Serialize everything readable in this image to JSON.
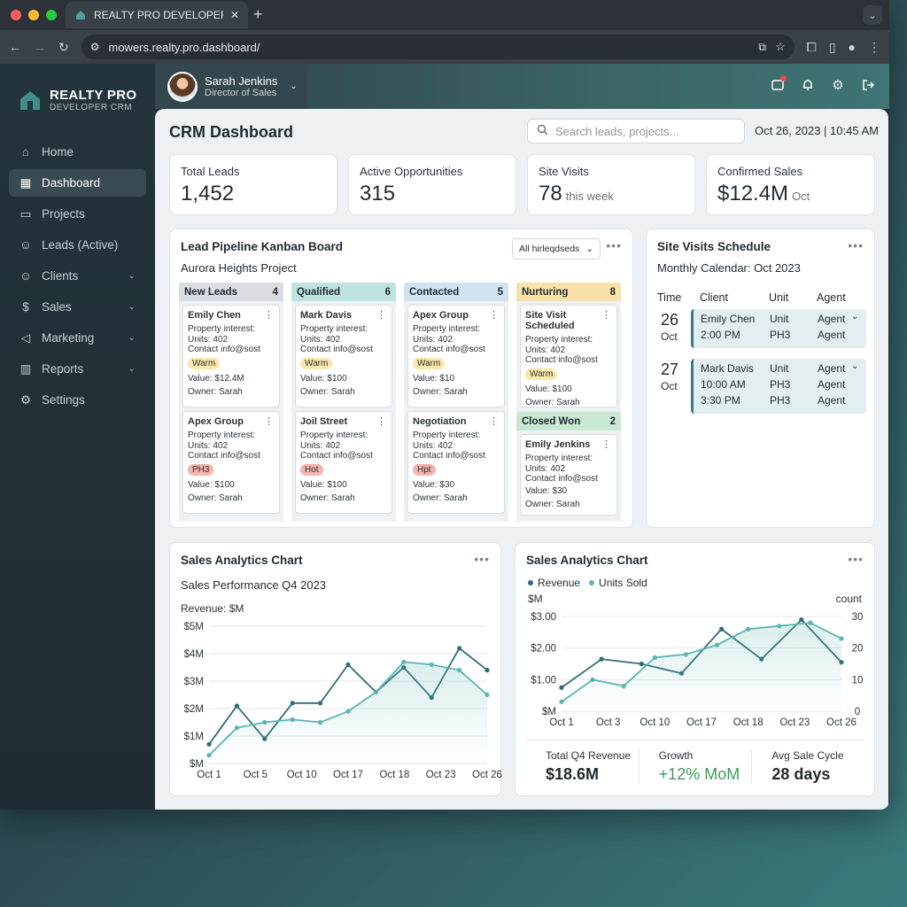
{
  "browser": {
    "tab_title": "REALTY PRO DEVELOPER CRM",
    "url": "mowers.realty.pro.dashboard/"
  },
  "brand": {
    "title": "REALTY PRO",
    "subtitle": "DEVELOPER CRM"
  },
  "user": {
    "name": "Sarah Jenkins",
    "role": "Director of Sales"
  },
  "sidebar": {
    "items": [
      {
        "label": "Home",
        "icon": "home-icon"
      },
      {
        "label": "Dashboard",
        "icon": "grid-icon",
        "active": true
      },
      {
        "label": "Projects",
        "icon": "folder-icon"
      },
      {
        "label": "Leads (Active)",
        "icon": "users-icon"
      },
      {
        "label": "Clients",
        "icon": "users-icon",
        "expandable": true
      },
      {
        "label": "Sales",
        "icon": "dollar-icon",
        "expandable": true
      },
      {
        "label": "Marketing",
        "icon": "megaphone-icon",
        "expandable": true
      },
      {
        "label": "Reports",
        "icon": "bar-chart-icon",
        "expandable": true
      },
      {
        "label": "Settings",
        "icon": "gear-icon"
      }
    ]
  },
  "header": {
    "title": "CRM Dashboard",
    "search_placeholder": "Search leads, projects...",
    "datetime": "Oct 26, 2023 | 10:45 AM"
  },
  "kpis": [
    {
      "label": "Total Leads",
      "value": "1,452",
      "suffix": ""
    },
    {
      "label": "Active Opportunities",
      "value": "315",
      "suffix": ""
    },
    {
      "label": "Site Visits",
      "value": "78",
      "suffix": "this week"
    },
    {
      "label": "Confirmed Sales",
      "value": "$12.4M",
      "suffix": "Oct"
    }
  ],
  "kanban": {
    "title": "Lead Pipeline Kanban Board",
    "subtitle": "Aurora Heights Project",
    "filter": "All hirleqdseds",
    "columns": [
      {
        "name": "New Leads",
        "count": "4",
        "color": "#d9dde1",
        "cards": [
          {
            "name": "Emily Chen",
            "l1": "Property interest:",
            "l2": "Units: 402",
            "l3": "Contact info@sost",
            "tag": "Warm",
            "tagclass": "warm",
            "value": "Value: $12.4M",
            "owner": "Owner: Sarah"
          },
          {
            "name": "Apex Group",
            "l1": "Property interest:",
            "l2": "Units: 402",
            "l3": "Contact info@sost",
            "tag": "PH3",
            "tagclass": "ph3",
            "value": "Value: $100",
            "owner": "Owner: Sarah"
          }
        ]
      },
      {
        "name": "Qualified",
        "count": "6",
        "color": "#bfe3de",
        "cards": [
          {
            "name": "Mark Davis",
            "l1": "Property interest:",
            "l2": "Units: 402",
            "l3": "Contact info@sost",
            "tag": "Warm",
            "tagclass": "warm",
            "value": "Value: $100",
            "owner": "Owner: Sarah"
          },
          {
            "name": "Joil Street",
            "l1": "Property interest:",
            "l2": "Units: 402",
            "l3": "Contact info@sost",
            "tag": "Hot",
            "tagclass": "hot",
            "value": "Value: $100",
            "owner": "Owner: Sarah"
          }
        ]
      },
      {
        "name": "Contacted",
        "count": "5",
        "color": "#cfe3f1",
        "cards": [
          {
            "name": "Apex Group",
            "l1": "Property interest:",
            "l2": "Units: 402",
            "l3": "Contact info@sost",
            "tag": "Warm",
            "tagclass": "warm",
            "value": "Value: $10",
            "owner": "Owner: Sarah"
          },
          {
            "name": "Negotiation",
            "l1": "Property interest:",
            "l2": "Units: 402",
            "l3": "Contact info@sost",
            "tag": "Hpt",
            "tagclass": "hot",
            "value": "Value: $30",
            "owner": "Owner: Sarah"
          }
        ]
      },
      {
        "name": "Nurturing",
        "count": "8",
        "color": "#f8e2aa",
        "cards": [
          {
            "name": "Site Visit Scheduled",
            "l1": "Property interest:",
            "l2": "Units: 402",
            "l3": "Contact info@sost",
            "tag": "Warm",
            "tagclass": "warm",
            "value": "Value: $100",
            "owner": "Owner: Sarah"
          }
        ]
      }
    ],
    "closed": {
      "name": "Closed Won",
      "count": "2",
      "card": {
        "name": "Emily Jenkins",
        "l1": "Property interest:",
        "l2": "Units: 402",
        "l3": "Contact info@sost",
        "value": "Value: $30",
        "owner": "Owner: Sarah"
      }
    }
  },
  "visits": {
    "title": "Site Visits Schedule",
    "subtitle": "Monthly Calendar: Oct 2023",
    "headers": [
      "Time",
      "Client",
      "Unit",
      "Agent"
    ],
    "days": [
      {
        "day": "26",
        "month": "Oct",
        "rows": [
          {
            "client": "Emily Chen",
            "unit": "Unit",
            "agent": "Agent"
          },
          {
            "client": "2:00 PM",
            "unit": "PH3",
            "agent": "Agent"
          }
        ]
      },
      {
        "day": "27",
        "month": "Oct",
        "rows": [
          {
            "client": "Mark Davis",
            "unit": "Unit",
            "agent": "Agent"
          },
          {
            "client": "10:00 AM",
            "unit": "PH3",
            "agent": "Agent"
          },
          {
            "client": "3:30 PM",
            "unit": "PH3",
            "agent": "Agent"
          }
        ]
      }
    ]
  },
  "chart1": {
    "title": "Sales Analytics Chart",
    "subtitle": "Sales Performance Q4 2023"
  },
  "chart2": {
    "title": "Sales Analytics Chart"
  },
  "chart_data": [
    {
      "type": "line",
      "ylabel": "Revenue: $M",
      "y_ticks": [
        "$5M",
        "$4M",
        "$3M",
        "$2M",
        "$1M",
        "$M"
      ],
      "ylim": [
        0,
        5
      ],
      "x_ticks": [
        "Oct 1",
        "Oct 5",
        "Oct 10",
        "Oct 17",
        "Oct 18",
        "Oct 23",
        "Oct 26"
      ],
      "series": [
        {
          "values": [
            0.7,
            2.1,
            0.9,
            2.2,
            2.2,
            3.6,
            2.6,
            3.5,
            2.4,
            4.2,
            3.4
          ],
          "color": "#2f6e73"
        },
        {
          "values": [
            0.3,
            1.3,
            1.5,
            1.6,
            1.5,
            1.9,
            2.6,
            3.7,
            3.6,
            3.4,
            2.5
          ],
          "color": "#5bb5b0"
        }
      ]
    },
    {
      "type": "line",
      "ylabel": "$M",
      "y2label": "count",
      "y_ticks": [
        "$3.00",
        "$2.00",
        "$1.00",
        "$M"
      ],
      "y2_ticks": [
        "30",
        "20",
        "10",
        "0"
      ],
      "x_ticks": [
        "Oct 1",
        "Oct 3",
        "Oct 10",
        "Oct 17",
        "Oct 18",
        "Oct 23",
        "Oct 26"
      ],
      "series": [
        {
          "name": "Revenue",
          "axis": "left",
          "values": [
            0.75,
            1.65,
            1.5,
            1.2,
            2.6,
            1.65,
            2.9,
            1.55
          ],
          "color": "#2f6e73"
        },
        {
          "name": "Units Sold",
          "axis": "right",
          "values": [
            3,
            10,
            8,
            17,
            18,
            21,
            26,
            27,
            28,
            23
          ],
          "color": "#5bb5b0"
        }
      ]
    }
  ],
  "stats": [
    {
      "label": "Total Q4 Revenue",
      "value": "$18.6M",
      "green": false
    },
    {
      "label": "Growth",
      "value": "+12% MoM",
      "green": true
    },
    {
      "label": "Avg Sale Cycle",
      "value": "28 days",
      "green": false
    }
  ]
}
